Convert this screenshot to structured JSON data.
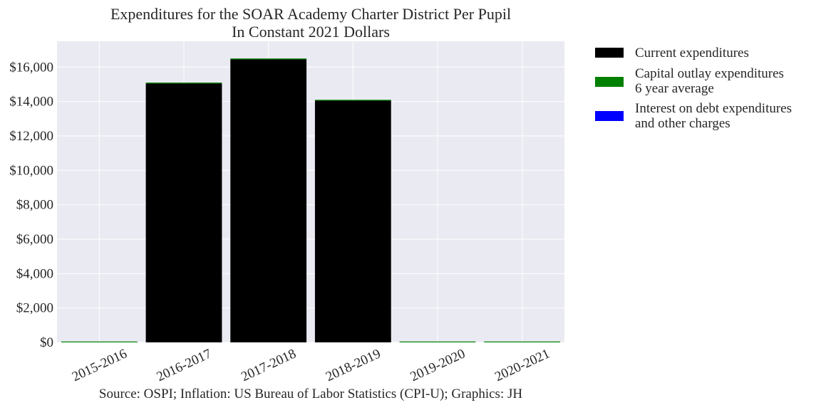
{
  "chart_data": {
    "type": "bar",
    "stacked": true,
    "title": "Expenditures for the SOAR Academy Charter District Per Pupil",
    "subtitle": "In Constant 2021 Dollars",
    "categories": [
      "2015-2016",
      "2016-2017",
      "2017-2018",
      "2018-2019",
      "2019-2020",
      "2020-2021"
    ],
    "series": [
      {
        "name": "Current expenditures",
        "color": "#000000",
        "values": [
          0,
          15050,
          16450,
          14050,
          0,
          0
        ]
      },
      {
        "name": "Capital outlay expenditures 6 year average",
        "color": "#008000",
        "values": [
          50,
          50,
          50,
          50,
          50,
          50
        ]
      },
      {
        "name": "Interest on debt expenditures and other charges",
        "color": "#0000ff",
        "values": [
          0,
          0,
          0,
          0,
          0,
          0
        ]
      }
    ],
    "ylim": [
      0,
      17500
    ],
    "yticks": [
      0,
      2000,
      4000,
      6000,
      8000,
      10000,
      12000,
      14000,
      16000
    ],
    "ytick_labels": [
      "$0",
      "$2,000",
      "$4,000",
      "$6,000",
      "$8,000",
      "$10,000",
      "$12,000",
      "$14,000",
      "$16,000"
    ],
    "grid": true,
    "legend_position": "outside-right",
    "plot_background": "#eaeaf2",
    "source": "Source: OSPI; Inflation: US Bureau of Labor Statistics (CPI-U); Graphics: JH"
  },
  "legend": {
    "current_line1": "Current expenditures",
    "capital_line1": "Capital outlay expenditures",
    "capital_line2": "6 year average",
    "interest_line1": "Interest on debt expenditures",
    "interest_line2": "and other charges"
  }
}
